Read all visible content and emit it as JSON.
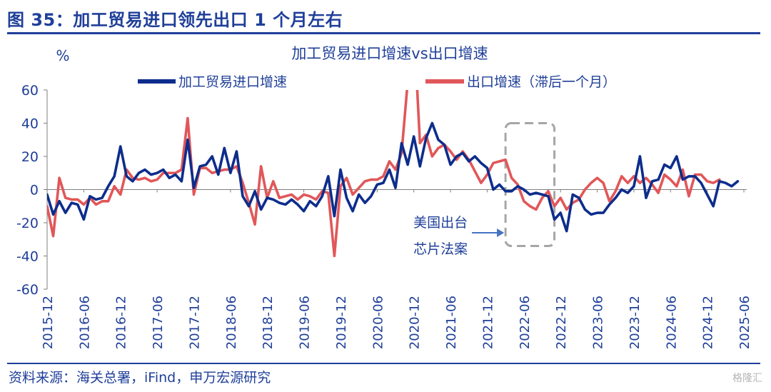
{
  "figure": {
    "title": "图 35：加工贸易进口领先出口 1 个月左右",
    "source": "资料来源：海关总署，iFind，申万宏源研究",
    "watermark": "格隆汇"
  },
  "colors": {
    "brand": "#1f3f99",
    "series_blue": "#0d2d8c",
    "series_red": "#e15759",
    "axis_text": "#1f3f99",
    "annotation_box": "#a6a6a6",
    "annotation_arrow": "#4472c4"
  },
  "chart_data": {
    "type": "line",
    "title": "加工贸易进口增速vs出口增速",
    "ylabel": "%",
    "ylim": [
      -60,
      60
    ],
    "yticks": [
      -60,
      -40,
      -20,
      0,
      20,
      40,
      60
    ],
    "x_start": "2015-12",
    "x_end": "2025-06",
    "xticks": [
      "2015-12",
      "2016-06",
      "2016-12",
      "2017-06",
      "2017-12",
      "2018-06",
      "2018-12",
      "2019-06",
      "2019-12",
      "2020-06",
      "2020-12",
      "2021-06",
      "2021-12",
      "2022-06",
      "2022-12",
      "2023-06",
      "2023-12",
      "2024-06",
      "2024-12",
      "2025-06"
    ],
    "legend_placement": "top",
    "grid": false,
    "series": [
      {
        "name": "加工贸易进口增速",
        "color": "#0d2d8c",
        "values": [
          -3,
          -15,
          -7,
          -14,
          -8,
          -9,
          -18,
          -4,
          -6,
          -5,
          2,
          8,
          26,
          8,
          5,
          10,
          12,
          9,
          10,
          12,
          7,
          9,
          5,
          30,
          1,
          14,
          15,
          20,
          9,
          25,
          10,
          23,
          -4,
          -10,
          -1,
          -12,
          -5,
          -6,
          -8,
          -9,
          -6,
          -9,
          -13,
          -7,
          -10,
          -4,
          8,
          -16,
          12,
          -5,
          -13,
          -3,
          -8,
          -4,
          3,
          4,
          12,
          1,
          28,
          15,
          32,
          14,
          31,
          40,
          30,
          27,
          15,
          20,
          22,
          17,
          20,
          16,
          13,
          0,
          3,
          -1,
          -1,
          2,
          0,
          -3,
          -2,
          -3,
          -4,
          -18,
          -14,
          -25,
          -3,
          -5,
          -12,
          -15,
          -14,
          -14,
          -9,
          -5,
          0,
          -2,
          2,
          20,
          -5,
          5,
          6,
          15,
          13,
          20,
          6,
          8,
          8,
          4,
          -3,
          -10,
          5,
          4,
          2,
          5
        ]
      },
      {
        "name": "出口增速（滞后一个月）",
        "color": "#e15759",
        "values": [
          -10,
          -28,
          7,
          -5,
          -6,
          -6,
          -9,
          -5,
          -9,
          -7,
          -7,
          2,
          -3,
          12,
          7,
          6,
          7,
          5,
          6,
          10,
          10,
          10,
          12,
          43,
          -3,
          13,
          13,
          10,
          11,
          12,
          12,
          14,
          4,
          -8,
          -21,
          14,
          -5,
          5,
          -5,
          -4,
          -3,
          -6,
          -3,
          -4,
          -6,
          -1,
          -2,
          -40,
          2,
          7,
          -3,
          1,
          5,
          6,
          6,
          8,
          17,
          12,
          22,
          65,
          100,
          28,
          33,
          20,
          25,
          27,
          23,
          18,
          23,
          18,
          11,
          4,
          9,
          16,
          17,
          18,
          7,
          3,
          -7,
          -10,
          -12,
          -5,
          -1,
          -10,
          -5,
          -12,
          -8,
          -6,
          0,
          4,
          7,
          4,
          -7,
          -1,
          8,
          4,
          8,
          4,
          7,
          3,
          -2,
          9,
          6,
          2,
          12,
          -4,
          9,
          9,
          5,
          4,
          6
        ]
      }
    ],
    "annotation": {
      "text_line1": "美国出台",
      "text_line2": "芯片法案",
      "box_from": "2022-03",
      "box_to": "2022-11",
      "box_y_top": 40,
      "box_y_bottom": -34
    }
  }
}
